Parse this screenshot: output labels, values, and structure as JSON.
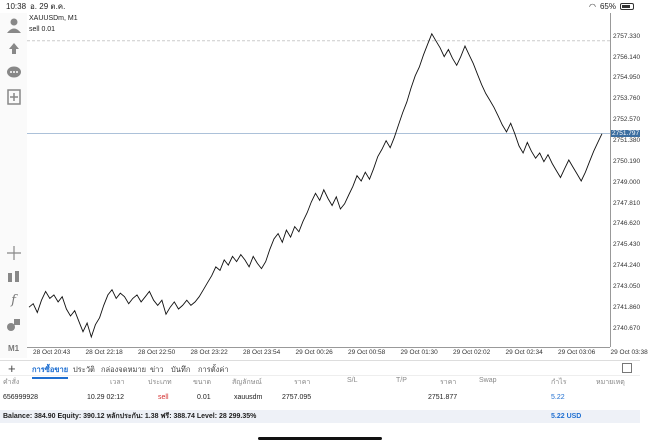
{
  "status": {
    "time": "10:38",
    "date": "อ. 29 ต.ค.",
    "battery": "65%"
  },
  "chart_header": {
    "symbol": "XAUUSDm, M1",
    "order_line": "sell 0.01"
  },
  "chart_data": {
    "type": "line",
    "x_ticks": [
      "28 Oct 20:43",
      "28 Oct 22:18",
      "28 Oct 22:50",
      "28 Oct 23:22",
      "28 Oct 23:54",
      "29 Oct 00:26",
      "29 Oct 00:58",
      "29 Oct 01:30",
      "29 Oct 02:02",
      "29 Oct 02:34",
      "29 Oct 03:06",
      "29 Oct 03:38"
    ],
    "y_ticks": [
      "2757.330",
      "2756.140",
      "2754.950",
      "2753.760",
      "2752.570",
      "2751.380",
      "2750.190",
      "2749.000",
      "2747.810",
      "2746.620",
      "2745.430",
      "2744.240",
      "2743.050",
      "2741.860",
      "2740.670"
    ],
    "current_price": "2751.797",
    "order_price_level": 2757.095,
    "ylim": [
      2740.2,
      2758.0
    ],
    "values": [
      2741.9,
      2742.1,
      2741.6,
      2742.3,
      2742.8,
      2742.4,
      2742.6,
      2742.2,
      2742.5,
      2741.8,
      2741.4,
      2741.7,
      2741.1,
      2740.5,
      2741.0,
      2740.2,
      2740.9,
      2741.3,
      2742.0,
      2742.6,
      2742.9,
      2742.4,
      2742.7,
      2742.5,
      2742.1,
      2742.4,
      2742.6,
      2742.2,
      2742.5,
      2742.8,
      2742.3,
      2742.0,
      2742.3,
      2741.5,
      2741.9,
      2742.2,
      2741.8,
      2742.0,
      2742.3,
      2742.0,
      2742.2,
      2742.5,
      2742.9,
      2743.3,
      2743.7,
      2744.2,
      2744.0,
      2744.6,
      2744.3,
      2744.8,
      2744.5,
      2744.9,
      2744.6,
      2744.2,
      2744.8,
      2744.4,
      2744.1,
      2744.5,
      2745.2,
      2745.8,
      2746.1,
      2745.6,
      2746.3,
      2745.9,
      2746.5,
      2746.2,
      2746.8,
      2747.3,
      2747.9,
      2748.4,
      2748.0,
      2748.6,
      2748.1,
      2747.7,
      2748.2,
      2747.5,
      2747.8,
      2748.3,
      2748.8,
      2749.4,
      2749.1,
      2749.6,
      2749.2,
      2749.8,
      2750.5,
      2750.9,
      2751.4,
      2751.0,
      2751.6,
      2752.3,
      2753.0,
      2753.6,
      2754.4,
      2755.1,
      2755.6,
      2756.3,
      2756.9,
      2757.5,
      2757.1,
      2756.7,
      2756.2,
      2756.6,
      2756.1,
      2755.7,
      2756.2,
      2756.8,
      2756.3,
      2755.8,
      2755.2,
      2754.6,
      2754.1,
      2753.7,
      2753.3,
      2752.8,
      2752.3,
      2751.9,
      2752.4,
      2751.8,
      2751.1,
      2750.7,
      2751.3,
      2750.8,
      2750.4,
      2750.7,
      2750.2,
      2750.6,
      2750.1,
      2749.7,
      2749.3,
      2749.8,
      2750.3,
      2749.9,
      2749.5,
      2749.1,
      2749.6,
      2750.2,
      2750.8,
      2751.3,
      2751.8
    ]
  },
  "tabs": [
    "การซื้อขาย",
    "ประวัติ",
    "กล่องจดหมาย",
    "ข่าว",
    "บันทึก",
    "การตั้งค่า"
  ],
  "table_headers": [
    "คำสั่ง",
    "เวลา",
    "ประเภท",
    "ขนาด",
    "สัญลักษณ์",
    "ราคา",
    "S/L",
    "T/P",
    "ราคา",
    "Swap",
    "กำไร",
    "หมายเหตุ"
  ],
  "order_row": {
    "id": "656999928",
    "time": "10.29 02:12",
    "type": "sell",
    "size": "0.01",
    "symbol": "xauusdm",
    "open_price": "2757.095",
    "current_price": "2751.877",
    "profit": "5.22"
  },
  "balance": {
    "text": "Balance: 384.90 Equity: 390.12 หลักประกัน: 1.38 ฟรี: 388.74 Level: 28 299.35%",
    "profit": "5.22  USD"
  },
  "colors": {
    "accent": "#1f6fd1",
    "sell": "#d32f2f",
    "price_tag": "#3c6ea0"
  }
}
